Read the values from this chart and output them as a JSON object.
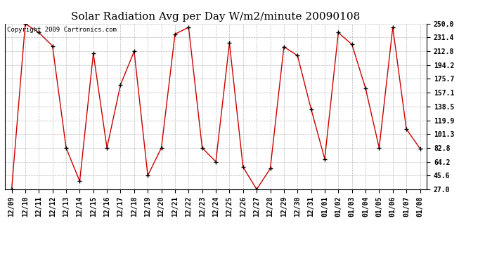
{
  "title": "Solar Radiation Avg per Day W/m2/minute 20090108",
  "copyright_text": "Copyright 2009 Cartronics.com",
  "x_labels": [
    "12/09",
    "12/10",
    "12/11",
    "12/12",
    "12/13",
    "12/14",
    "12/15",
    "12/16",
    "12/17",
    "12/18",
    "12/19",
    "12/20",
    "12/21",
    "12/22",
    "12/23",
    "12/24",
    "12/25",
    "12/26",
    "12/27",
    "12/28",
    "12/29",
    "12/30",
    "12/31",
    "01/01",
    "01/02",
    "01/03",
    "01/04",
    "01/05",
    "01/06",
    "01/07",
    "01/08"
  ],
  "y_values": [
    27.0,
    250.0,
    238.0,
    220.0,
    82.8,
    38.0,
    210.0,
    82.8,
    168.0,
    212.8,
    45.6,
    82.8,
    236.0,
    245.0,
    82.8,
    64.2,
    224.0,
    57.0,
    27.0,
    55.0,
    219.0,
    207.0,
    135.0,
    68.0,
    238.0,
    222.0,
    163.0,
    82.8,
    245.0,
    108.0,
    82.0
  ],
  "y_ticks": [
    27.0,
    45.6,
    64.2,
    82.8,
    101.3,
    119.9,
    138.5,
    157.1,
    175.7,
    194.2,
    212.8,
    231.4,
    250.0
  ],
  "line_color": "#cc0000",
  "marker_color": "#000000",
  "background_color": "#ffffff",
  "plot_bg_color": "#ffffff",
  "grid_color": "#bbbbbb",
  "title_fontsize": 11,
  "tick_fontsize": 7,
  "copyright_fontsize": 6.5,
  "ylim": [
    27.0,
    250.0
  ]
}
